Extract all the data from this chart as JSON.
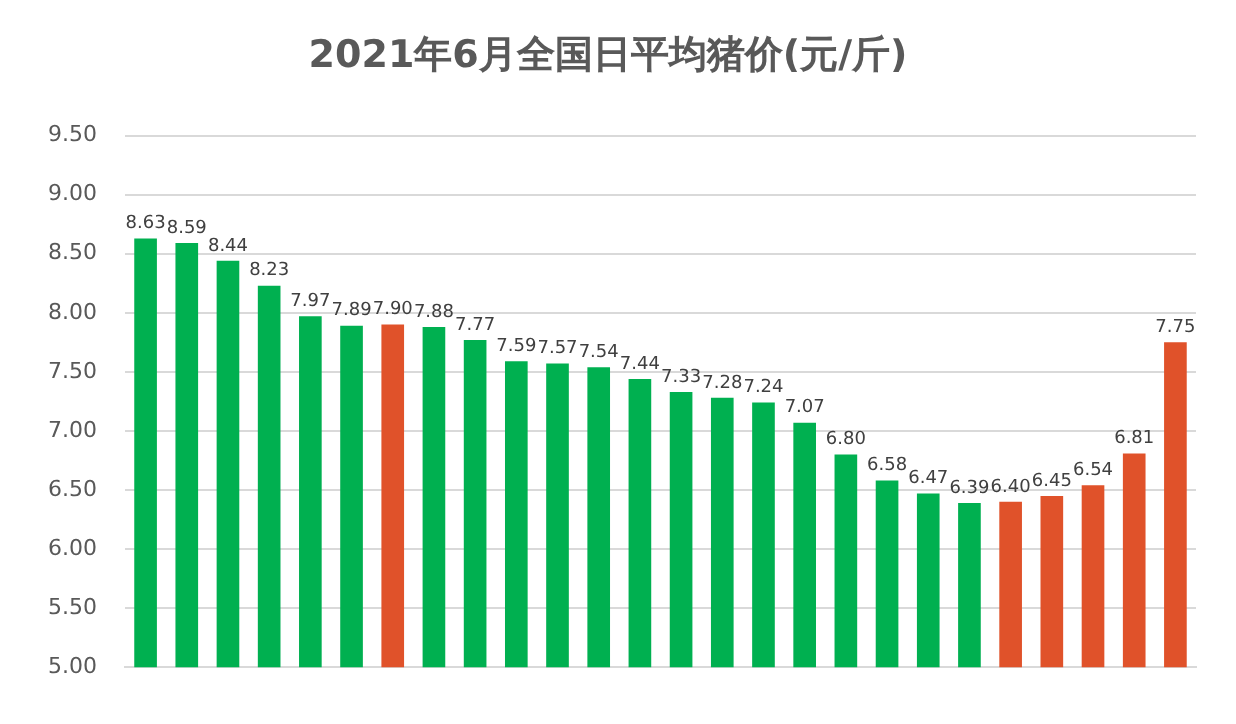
{
  "chart_data": {
    "type": "bar",
    "title": "2021年6月全国日平均猪价(元/斤)",
    "categories": [
      null,
      null,
      null,
      null,
      null,
      null,
      null,
      null,
      null,
      null,
      null,
      null,
      null,
      null,
      null,
      null,
      null,
      null,
      null,
      null,
      null,
      null,
      null,
      null,
      null,
      null
    ],
    "values": [
      8.63,
      8.59,
      8.44,
      8.23,
      7.97,
      7.89,
      7.9,
      7.88,
      7.77,
      7.59,
      7.57,
      7.54,
      7.44,
      7.33,
      7.28,
      7.24,
      7.07,
      6.8,
      6.58,
      6.47,
      6.39,
      6.4,
      6.45,
      6.54,
      6.81,
      7.75
    ],
    "colors": [
      "#00b050",
      "#00b050",
      "#00b050",
      "#00b050",
      "#00b050",
      "#00b050",
      "#e0522a",
      "#00b050",
      "#00b050",
      "#00b050",
      "#00b050",
      "#00b050",
      "#00b050",
      "#00b050",
      "#00b050",
      "#00b050",
      "#00b050",
      "#00b050",
      "#00b050",
      "#00b050",
      "#00b050",
      "#e0522a",
      "#e0522a",
      "#e0522a",
      "#e0522a",
      "#e0522a"
    ],
    "ylim": [
      5,
      9.5
    ],
    "yticks": [
      {
        "value": 5,
        "label": "5.00"
      },
      {
        "value": 5.5,
        "label": "5.50"
      },
      {
        "value": 6,
        "label": "6.00"
      },
      {
        "value": 6.5,
        "label": "6.50"
      },
      {
        "value": 7,
        "label": "7.00"
      },
      {
        "value": 7.5,
        "label": "7.50"
      },
      {
        "value": 8,
        "label": "8.00"
      },
      {
        "value": 8.5,
        "label": "8.50"
      },
      {
        "value": 9,
        "label": "9.00"
      },
      {
        "value": 9.5,
        "label": "9.50"
      }
    ],
    "value_labels": [
      "8.63",
      "8.59",
      "8.44",
      "8.23",
      "7.97",
      "7.89",
      "7.90",
      "7.88",
      "7.77",
      "7.59",
      "7.57",
      "7.54",
      "7.44",
      "7.33",
      "7.28",
      "7.24",
      "7.07",
      "6.80",
      "6.58",
      "6.47",
      "6.39",
      "6.40",
      "6.45",
      "6.54",
      "6.81",
      "7.75"
    ],
    "grid": "y"
  }
}
